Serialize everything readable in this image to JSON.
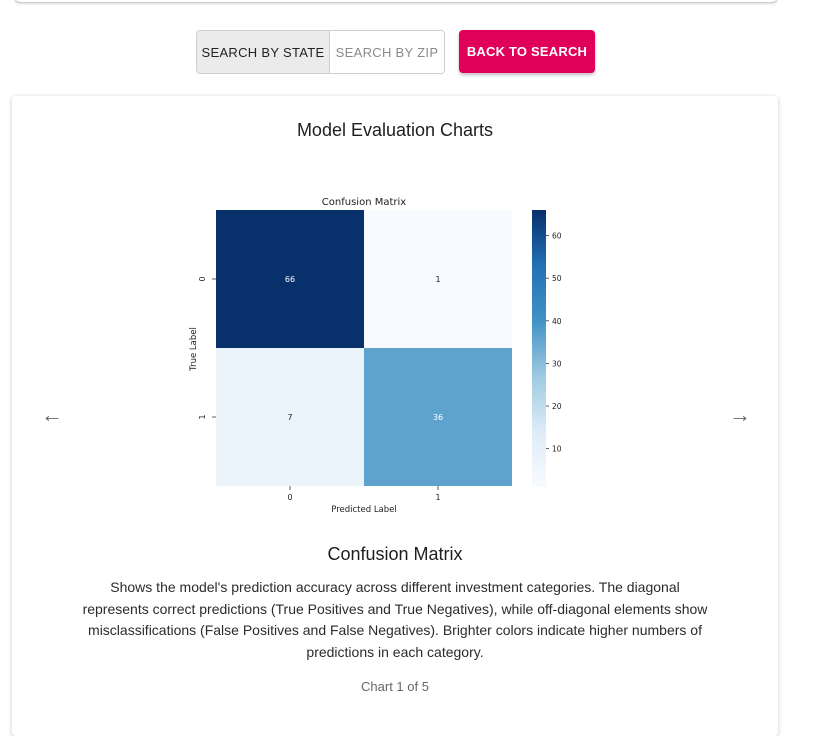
{
  "toolbar": {
    "search_by_state": "SEARCH BY STATE",
    "search_by_zip": "SEARCH BY ZIP",
    "back_to_search": "BACK TO SEARCH"
  },
  "card": {
    "title": "Model Evaluation Charts",
    "chart_heading": "Confusion Matrix",
    "description": "Shows the model's prediction accuracy across different investment categories. The diagonal represents correct predictions (True Positives and True Negatives), while off-diagonal elements show misclassifications (False Positives and False Negatives). Brighter colors indicate higher numbers of predictions in each category.",
    "pager": "Chart 1 of 5",
    "prev_icon": "arrow-left-icon",
    "next_icon": "arrow-right-icon"
  },
  "chart_data": {
    "type": "heatmap",
    "title": "Confusion Matrix",
    "xlabel": "Predicted Label",
    "ylabel": "True Label",
    "x_categories": [
      "0",
      "1"
    ],
    "y_categories": [
      "0",
      "1"
    ],
    "values": [
      [
        66,
        1
      ],
      [
        7,
        36
      ]
    ],
    "colormap": "Blues",
    "colorbar_ticks": [
      10,
      20,
      30,
      40,
      50,
      60
    ],
    "colorbar_range": [
      1,
      66
    ]
  }
}
